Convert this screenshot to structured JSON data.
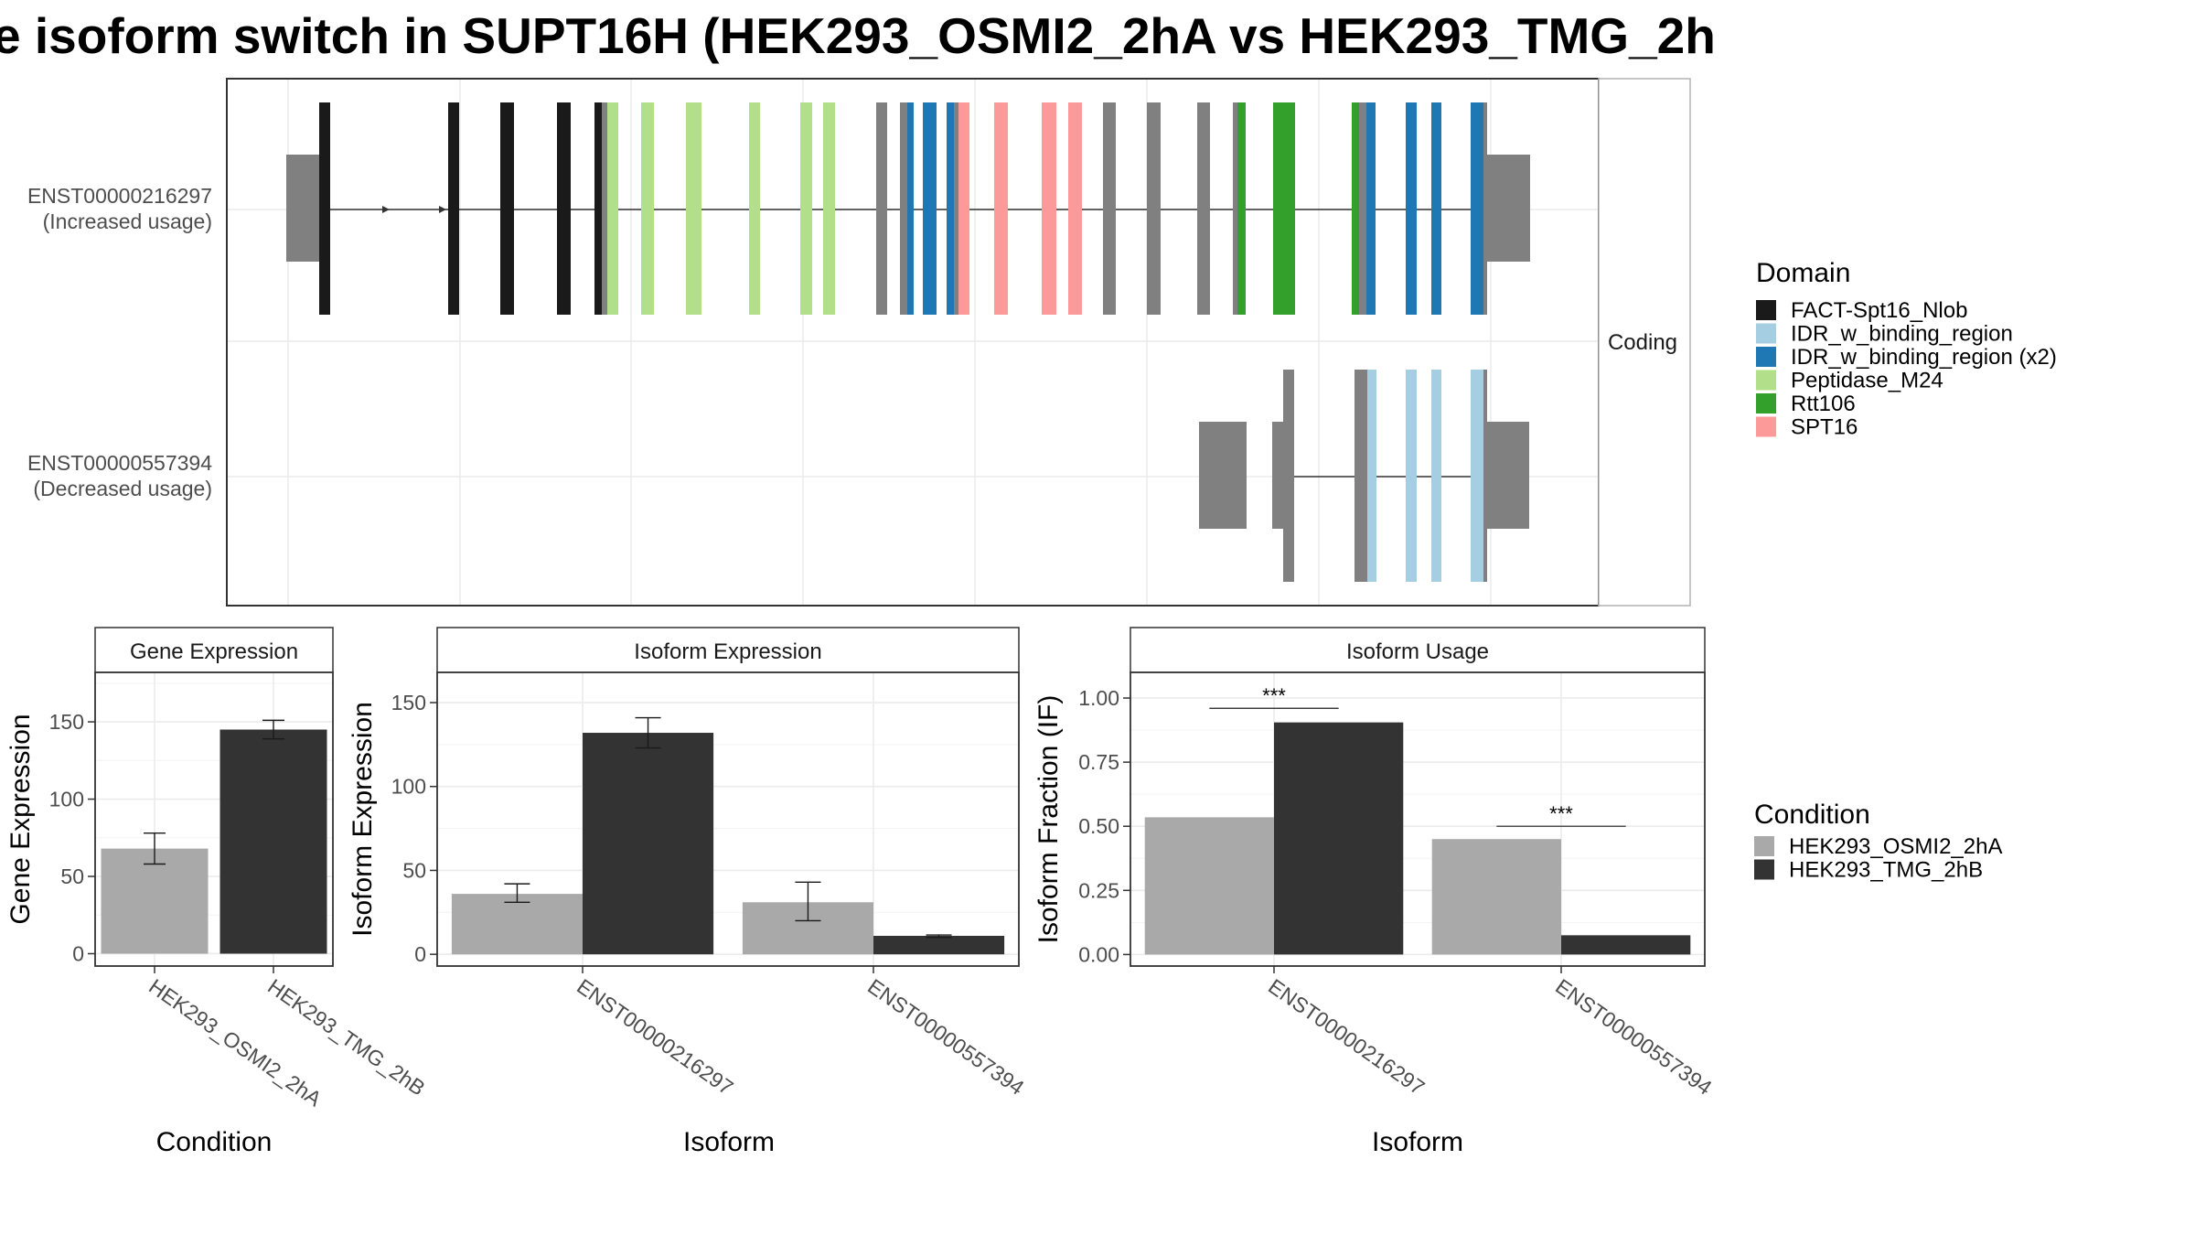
{
  "title": "e isoform switch in SUPT16H (HEK293_OSMI2_2hA vs HEK293_TMG_2h",
  "colors": {
    "utr": "#808080",
    "FACT-Spt16_Nlob": "#1a1a1a",
    "IDR_w_binding_region": "#a6cee3",
    "IDR_w_binding_region (x2)": "#1f78b4",
    "Peptidase_M24": "#b2df8a",
    "Rtt106": "#33a02c",
    "SPT16": "#fb9a99",
    "cond_a": "#a9a9a9",
    "cond_b": "#333333"
  },
  "structure": {
    "facet_label": "Coding",
    "transcripts": [
      {
        "id": "ENST00000216297",
        "label": "ENST00000216297",
        "usage": "(Increased usage)"
      },
      {
        "id": "ENST00000557394",
        "label": "ENST00000557394",
        "usage": "(Decreased usage)"
      }
    ]
  },
  "domain_legend": {
    "title": "Domain",
    "items": [
      "FACT-Spt16_Nlob",
      "IDR_w_binding_region",
      "IDR_w_binding_region (x2)",
      "Peptidase_M24",
      "Rtt106",
      "SPT16"
    ]
  },
  "condition_legend": {
    "title": "Condition",
    "items": [
      "HEK293_OSMI2_2hA",
      "HEK293_TMG_2hB"
    ]
  },
  "chart_data": [
    {
      "type": "bar",
      "title": "Gene Expression",
      "xlabel": "Condition",
      "ylabel": "Gene Expression",
      "categories": [
        "HEK293_OSMI2_2hA",
        "HEK293_TMG_2hB"
      ],
      "values": [
        68,
        145
      ],
      "errors": [
        [
          58,
          78
        ],
        [
          139,
          151
        ]
      ],
      "ylim": [
        -8,
        182
      ],
      "yticks": [
        0,
        50,
        100,
        150
      ]
    },
    {
      "type": "bar",
      "title": "Isoform Expression",
      "xlabel": "Isoform",
      "ylabel": "Isoform Expression",
      "categories": [
        "ENST00000216297",
        "ENST00000557394"
      ],
      "series": [
        {
          "name": "HEK293_OSMI2_2hA",
          "values": [
            36,
            31
          ],
          "errors": [
            [
              31,
              42
            ],
            [
              20,
              43
            ]
          ]
        },
        {
          "name": "HEK293_TMG_2hB",
          "values": [
            132,
            11
          ],
          "errors": [
            [
              123,
              141
            ],
            [
              10,
              11.5
            ]
          ]
        }
      ],
      "ylim": [
        -7,
        168
      ],
      "yticks": [
        0,
        50,
        100,
        150
      ]
    },
    {
      "type": "bar",
      "title": "Isoform Usage",
      "xlabel": "Isoform",
      "ylabel": "Isoform Fraction (IF)",
      "categories": [
        "ENST00000216297",
        "ENST00000557394"
      ],
      "series": [
        {
          "name": "HEK293_OSMI2_2hA",
          "values": [
            0.535,
            0.45
          ]
        },
        {
          "name": "HEK293_TMG_2hB",
          "values": [
            0.905,
            0.075
          ]
        }
      ],
      "significance": [
        {
          "category": "ENST00000216297",
          "label": "***",
          "y": 0.96
        },
        {
          "category": "ENST00000557394",
          "label": "***",
          "y": 0.5
        }
      ],
      "ylim": [
        -0.045,
        1.1
      ],
      "yticks": [
        0.0,
        0.25,
        0.5,
        0.75,
        1.0
      ],
      "ytick_labels": [
        "0.00",
        "0.25",
        "0.50",
        "0.75",
        "1.00"
      ]
    }
  ]
}
